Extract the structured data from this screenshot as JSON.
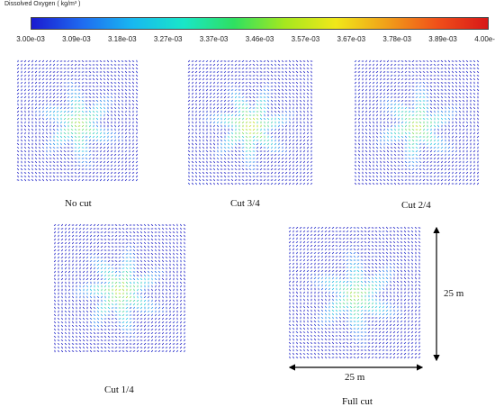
{
  "colorbar": {
    "title": "Dissolved Oxygen ( kg/m³ )",
    "ticks": [
      "3.00e-03",
      "3.09e-03",
      "3.18e-03",
      "3.27e-03",
      "3.37e-03",
      "3.46e-03",
      "3.57e-03",
      "3.67e-03",
      "3.78e-03",
      "3.89e-03",
      "4.00e-03"
    ],
    "colors": [
      "#1a1ad0",
      "#1f6bf0",
      "#18b8f0",
      "#19e6c8",
      "#2fe060",
      "#a6e81e",
      "#f0e81a",
      "#f0a01a",
      "#f0501a",
      "#d81818"
    ]
  },
  "panels": [
    {
      "label": "No cut",
      "level": 0.4
    },
    {
      "label": "Cut 3/4",
      "level": 0.55
    },
    {
      "label": "Cut 2/4",
      "level": 0.42
    },
    {
      "label": "Cut 1/4",
      "level": 0.45
    },
    {
      "label": "Full cut",
      "level": 0.38
    }
  ],
  "dimensions": {
    "width_label": "25 m",
    "height_label": "25 m"
  }
}
